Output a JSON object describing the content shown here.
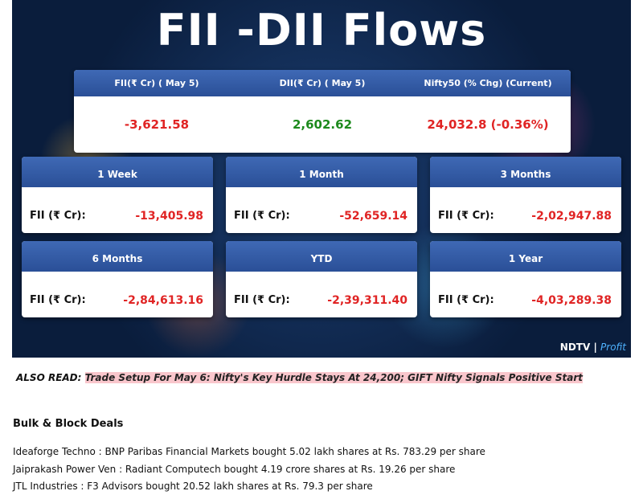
{
  "banner": {
    "title": "FII -DII Flows",
    "summary": [
      {
        "label": "FII(₹ Cr) ( May 5)",
        "value": "-3,621.58"
      },
      {
        "label": "DII(₹ Cr) ( May 5)",
        "value": "2,602.62"
      },
      {
        "label": "Nifty50 (% Chg) (Current)",
        "value": "24,032.8 (-0.36%)"
      }
    ],
    "periods": [
      {
        "period": "1 Week",
        "label": "FII (₹ Cr):",
        "value": "-13,405.98"
      },
      {
        "period": "1 Month",
        "label": "FII (₹ Cr):",
        "value": "-52,659.14"
      },
      {
        "period": "3 Months",
        "label": "FII (₹ Cr):",
        "value": "-2,02,947.88"
      },
      {
        "period": "6 Months",
        "label": "FII (₹ Cr):",
        "value": "-2,84,613.16"
      },
      {
        "period": "YTD",
        "label": "FII (₹ Cr):",
        "value": "-2,39,311.40"
      },
      {
        "period": "1 Year",
        "label": "FII (₹ Cr):",
        "value": "-4,03,289.38"
      }
    ],
    "logo": {
      "brand": "NDTV",
      "sub": "Profit"
    }
  },
  "also_read": {
    "prefix": "ALSO READ:",
    "link": "Trade Setup For May 6: Nifty's Key Hurdle Stays At 24,200; GIFT Nifty Signals Positive Start"
  },
  "section": {
    "heading": "Bulk & Block Deals",
    "items": [
      "Ideaforge Techno : BNP Paribas Financial Markets bought 5.02 lakh shares at Rs. 783.29 per share",
      "Jaiprakash Power Ven : Radiant Computech bought 4.19 crore shares at Rs. 19.26 per share",
      "JTL Industries : F3 Advisors bought 20.52 lakh shares at Rs. 79.3 per share"
    ]
  }
}
